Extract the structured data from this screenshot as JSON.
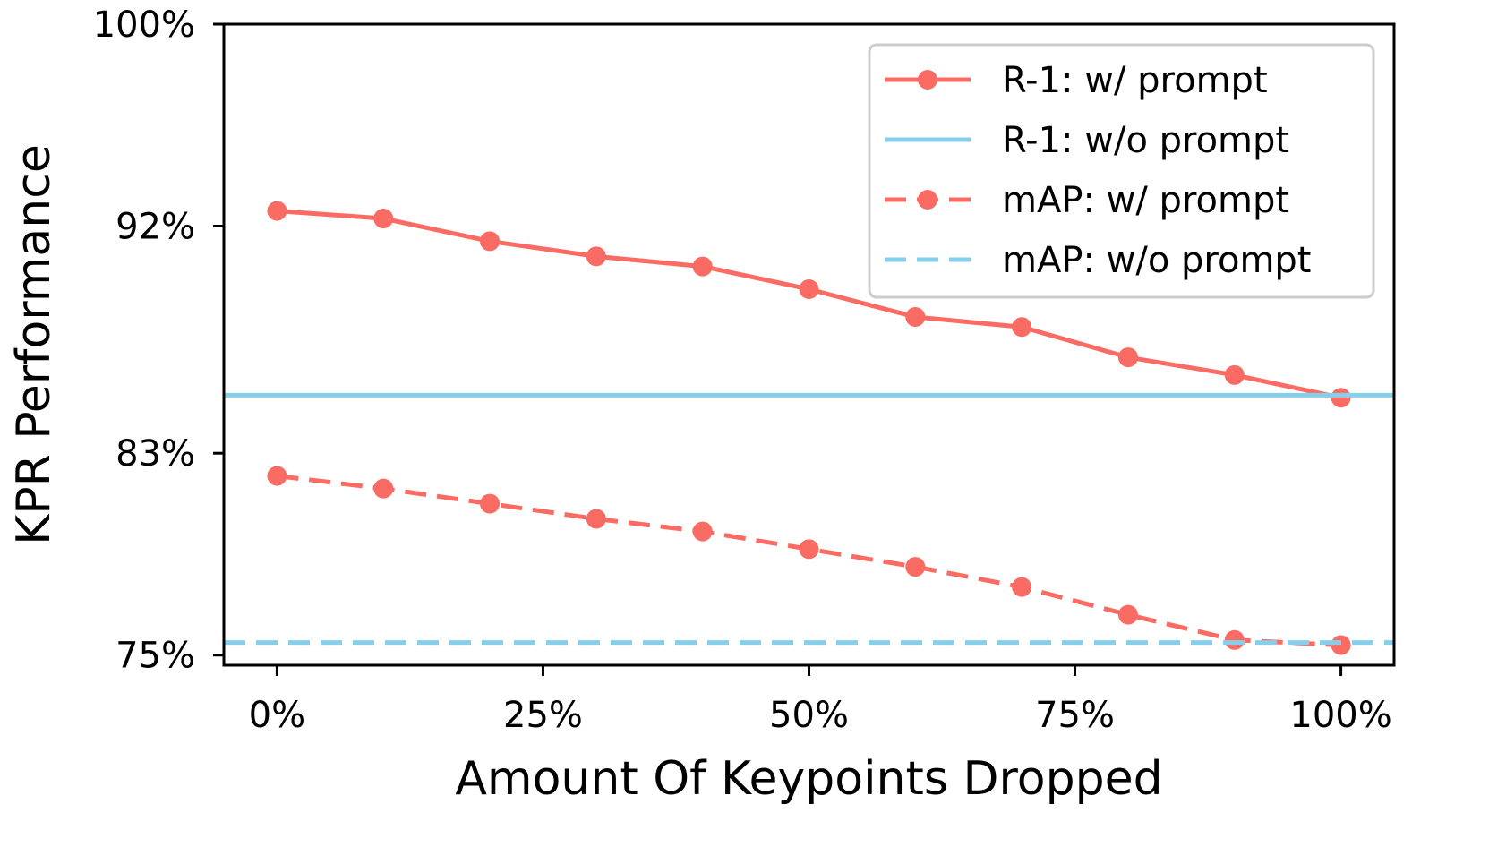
{
  "chart_data": {
    "type": "line",
    "title": "",
    "xlabel": "Amount Of Keypoints Dropped",
    "ylabel": "KPR Performance",
    "x": [
      0,
      10,
      20,
      30,
      40,
      50,
      60,
      70,
      80,
      90,
      100
    ],
    "xlim": [
      -5,
      105
    ],
    "ylim": [
      74.6,
      100
    ],
    "xticks": [
      0,
      25,
      50,
      75,
      100
    ],
    "xtick_labels": [
      "0%",
      "25%",
      "50%",
      "75%",
      "100%"
    ],
    "yticks": [
      75,
      83,
      92,
      100
    ],
    "ytick_labels": [
      "75%",
      "83%",
      "92%",
      "100%"
    ],
    "legend_position": "top-right",
    "grid": false,
    "series": [
      {
        "name": "R-1: w/ prompt",
        "color": "#fa6b63",
        "style": "solid",
        "marker": "circle",
        "values": [
          92.6,
          92.3,
          91.4,
          90.8,
          90.4,
          89.5,
          88.4,
          88.0,
          86.8,
          86.1,
          85.2
        ]
      },
      {
        "name": "R-1: w/o prompt",
        "color": "#87ceeb",
        "style": "solid",
        "marker": "none",
        "hline": 85.3
      },
      {
        "name": "mAP: w/ prompt",
        "color": "#fa6b63",
        "style": "dashed",
        "marker": "circle",
        "values": [
          82.1,
          81.6,
          81.0,
          80.4,
          79.9,
          79.2,
          78.5,
          77.7,
          76.6,
          75.6,
          75.4
        ]
      },
      {
        "name": "mAP: w/o prompt",
        "color": "#87ceeb",
        "style": "dashed",
        "marker": "none",
        "hline": 75.5
      }
    ]
  }
}
